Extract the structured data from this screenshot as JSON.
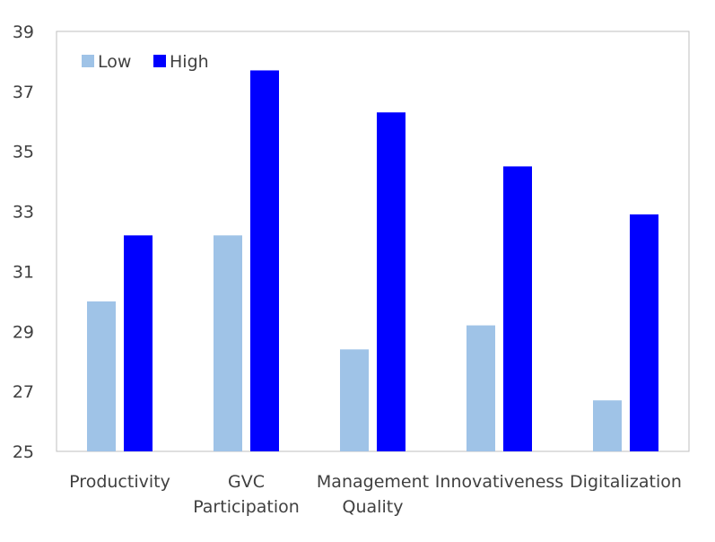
{
  "chart_data": {
    "type": "bar",
    "categories": [
      [
        "Productivity"
      ],
      [
        "GVC",
        "Participation"
      ],
      [
        "Management",
        "Quality"
      ],
      [
        "Innovativeness"
      ],
      [
        "Digitalization"
      ]
    ],
    "series": [
      {
        "name": "Low",
        "color": "#9fc3e7",
        "values": [
          30.0,
          32.2,
          28.4,
          29.2,
          26.7
        ]
      },
      {
        "name": "High",
        "color": "#0000ff",
        "values": [
          32.2,
          37.7,
          36.3,
          34.5,
          32.9
        ]
      }
    ],
    "y_ticks": [
      "25",
      "27",
      "29",
      "31",
      "33",
      "35",
      "37",
      "39"
    ],
    "ylim": [
      25,
      39
    ],
    "title": "",
    "xlabel": "",
    "ylabel": "",
    "grid": false,
    "legend_position": "top-left"
  }
}
